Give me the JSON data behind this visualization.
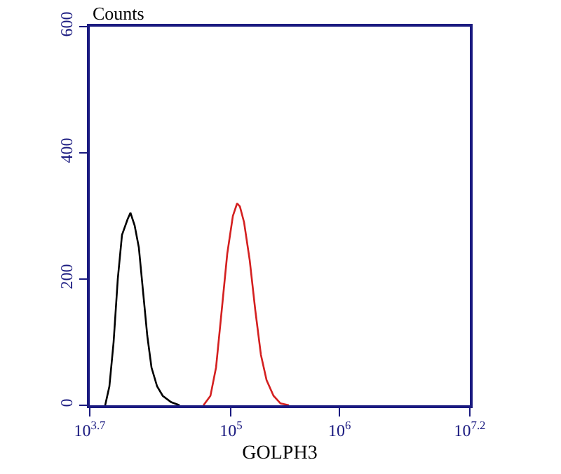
{
  "chart_data": {
    "type": "line",
    "ylabel": "Counts",
    "xlabel": "GOLPH3",
    "log": "x",
    "xlim": [
      5012,
      15848932
    ],
    "xticks": [
      {
        "value": 5012,
        "label": "10$^{3.7}$"
      },
      {
        "value": 100000,
        "label": "10$^{5}$"
      },
      {
        "value": 1000000,
        "label": "10$^{6}$"
      },
      {
        "value": 15848932,
        "label": "10$^{7.2}$"
      }
    ],
    "ylim": [
      0,
      600
    ],
    "yticks": [
      0,
      200,
      400,
      600
    ],
    "grid": false,
    "marker": "none",
    "line_style": "solid",
    "series": [
      {
        "color": "#000000",
        "x": [
          6950,
          7600,
          8310,
          9080,
          9930,
          11190,
          11880,
          12980,
          14190,
          15520,
          16980,
          18550,
          20900,
          23550,
          28140,
          33650
        ],
        "values": [
          0,
          30,
          100,
          200,
          270,
          295,
          305,
          285,
          250,
          180,
          110,
          60,
          30,
          15,
          5,
          0
        ]
      },
      {
        "color": "#d42020",
        "x": [
          55850,
          64760,
          72950,
          82200,
          92500,
          104200,
          114000,
          120900,
          132100,
          148900,
          167800,
          188800,
          212800,
          246800,
          286100,
          342600
        ],
        "values": [
          0,
          15,
          60,
          150,
          240,
          300,
          320,
          315,
          290,
          230,
          150,
          80,
          40,
          15,
          3,
          0
        ]
      }
    ]
  }
}
